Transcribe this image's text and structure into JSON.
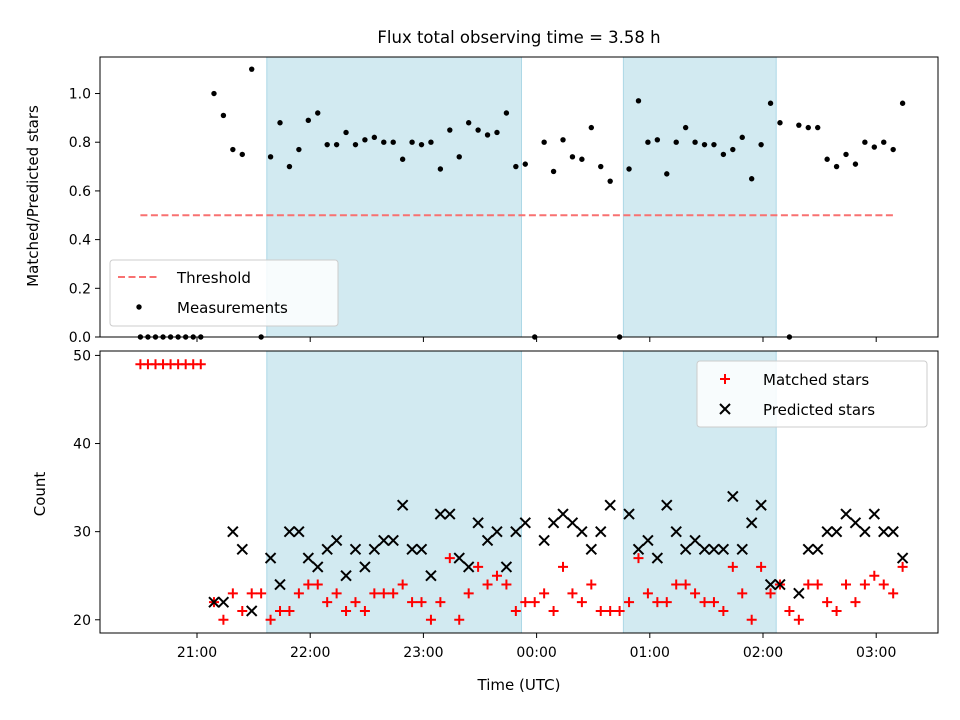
{
  "chart_data": [
    {
      "type": "scatter",
      "title": "Flux total observing time = 3.58 h",
      "ylabel": "Matched/Predicted stars",
      "xlabel": "",
      "ylim": [
        0.0,
        1.15
      ],
      "yticks": [
        "0.0",
        "0.2",
        "0.4",
        "0.6",
        "0.8",
        "1.0"
      ],
      "xticks": [
        "21:00",
        "22:00",
        "23:00",
        "00:00",
        "01:00",
        "02:00",
        "03:00"
      ],
      "shaded_intervals": [
        [
          "21:37",
          "23:52"
        ],
        [
          "00:46",
          "02:07"
        ]
      ],
      "threshold": {
        "name": "Threshold",
        "y": 0.5,
        "x_range": [
          "20:30",
          "03:10"
        ],
        "color": "#f87171"
      },
      "series": [
        {
          "name": "Measurements",
          "points": [
            [
              "20:30",
              0.0
            ],
            [
              "20:34",
              0.0
            ],
            [
              "20:38",
              0.0
            ],
            [
              "20:42",
              0.0
            ],
            [
              "20:46",
              0.0
            ],
            [
              "20:50",
              0.0
            ],
            [
              "20:54",
              0.0
            ],
            [
              "20:58",
              0.0
            ],
            [
              "21:02",
              0.0
            ],
            [
              "21:09",
              1.0
            ],
            [
              "21:14",
              0.91
            ],
            [
              "21:19",
              0.77
            ],
            [
              "21:24",
              0.75
            ],
            [
              "21:29",
              1.1
            ],
            [
              "21:34",
              0.0
            ],
            [
              "21:39",
              0.74
            ],
            [
              "21:44",
              0.88
            ],
            [
              "21:49",
              0.7
            ],
            [
              "21:54",
              0.77
            ],
            [
              "21:59",
              0.89
            ],
            [
              "22:04",
              0.92
            ],
            [
              "22:09",
              0.79
            ],
            [
              "22:14",
              0.79
            ],
            [
              "22:19",
              0.84
            ],
            [
              "22:24",
              0.79
            ],
            [
              "22:29",
              0.81
            ],
            [
              "22:34",
              0.82
            ],
            [
              "22:39",
              0.8
            ],
            [
              "22:44",
              0.8
            ],
            [
              "22:49",
              0.73
            ],
            [
              "22:54",
              0.8
            ],
            [
              "22:59",
              0.79
            ],
            [
              "23:04",
              0.8
            ],
            [
              "23:09",
              0.69
            ],
            [
              "23:14",
              0.85
            ],
            [
              "23:19",
              0.74
            ],
            [
              "23:24",
              0.88
            ],
            [
              "23:29",
              0.85
            ],
            [
              "23:34",
              0.83
            ],
            [
              "23:39",
              0.84
            ],
            [
              "23:44",
              0.92
            ],
            [
              "23:49",
              0.7
            ],
            [
              "23:54",
              0.71
            ],
            [
              "23:59",
              0.0
            ],
            [
              "00:04",
              0.8
            ],
            [
              "00:09",
              0.68
            ],
            [
              "00:14",
              0.81
            ],
            [
              "00:19",
              0.74
            ],
            [
              "00:24",
              0.73
            ],
            [
              "00:29",
              0.86
            ],
            [
              "00:34",
              0.7
            ],
            [
              "00:39",
              0.64
            ],
            [
              "00:44",
              0.0
            ],
            [
              "00:49",
              0.69
            ],
            [
              "00:54",
              0.97
            ],
            [
              "00:59",
              0.8
            ],
            [
              "01:04",
              0.81
            ],
            [
              "01:09",
              0.67
            ],
            [
              "01:14",
              0.8
            ],
            [
              "01:19",
              0.86
            ],
            [
              "01:24",
              0.8
            ],
            [
              "01:29",
              0.79
            ],
            [
              "01:34",
              0.79
            ],
            [
              "01:39",
              0.75
            ],
            [
              "01:44",
              0.77
            ],
            [
              "01:49",
              0.82
            ],
            [
              "01:54",
              0.65
            ],
            [
              "01:59",
              0.79
            ],
            [
              "02:04",
              0.96
            ],
            [
              "02:09",
              0.88
            ],
            [
              "02:14",
              0.0
            ],
            [
              "02:19",
              0.87
            ],
            [
              "02:24",
              0.86
            ],
            [
              "02:29",
              0.86
            ],
            [
              "02:34",
              0.73
            ],
            [
              "02:39",
              0.7
            ],
            [
              "02:44",
              0.75
            ],
            [
              "02:49",
              0.71
            ],
            [
              "02:54",
              0.8
            ],
            [
              "02:59",
              0.78
            ],
            [
              "03:04",
              0.8
            ],
            [
              "03:09",
              0.77
            ],
            [
              "03:14",
              0.96
            ]
          ]
        }
      ],
      "legend": {
        "placement": "lower-left",
        "entries": [
          "Threshold",
          "Measurements"
        ]
      }
    },
    {
      "type": "scatter",
      "title": "",
      "ylabel": "Count",
      "xlabel": "Time (UTC)",
      "ylim": [
        18.5,
        50.5
      ],
      "yticks": [
        "20",
        "30",
        "40",
        "50"
      ],
      "xticks": [
        "21:00",
        "22:00",
        "23:00",
        "00:00",
        "01:00",
        "02:00",
        "03:00"
      ],
      "shaded_intervals": [
        [
          "21:37",
          "23:52"
        ],
        [
          "00:46",
          "02:07"
        ]
      ],
      "series": [
        {
          "name": "Matched stars",
          "color": "#ff0000",
          "marker": "+",
          "points": [
            [
              "20:30",
              49
            ],
            [
              "20:34",
              49
            ],
            [
              "20:38",
              49
            ],
            [
              "20:42",
              49
            ],
            [
              "20:46",
              49
            ],
            [
              "20:50",
              49
            ],
            [
              "20:54",
              49
            ],
            [
              "20:58",
              49
            ],
            [
              "21:02",
              49
            ],
            [
              "21:09",
              22
            ],
            [
              "21:14",
              20
            ],
            [
              "21:19",
              23
            ],
            [
              "21:24",
              21
            ],
            [
              "21:29",
              23
            ],
            [
              "21:34",
              23
            ],
            [
              "21:39",
              20
            ],
            [
              "21:44",
              21
            ],
            [
              "21:49",
              21
            ],
            [
              "21:54",
              23
            ],
            [
              "21:59",
              24
            ],
            [
              "22:04",
              24
            ],
            [
              "22:09",
              22
            ],
            [
              "22:14",
              23
            ],
            [
              "22:19",
              21
            ],
            [
              "22:24",
              22
            ],
            [
              "22:29",
              21
            ],
            [
              "22:34",
              23
            ],
            [
              "22:39",
              23
            ],
            [
              "22:44",
              23
            ],
            [
              "22:49",
              24
            ],
            [
              "22:54",
              22
            ],
            [
              "22:59",
              22
            ],
            [
              "23:04",
              20
            ],
            [
              "23:09",
              22
            ],
            [
              "23:14",
              27
            ],
            [
              "23:19",
              20
            ],
            [
              "23:24",
              23
            ],
            [
              "23:29",
              26
            ],
            [
              "23:34",
              24
            ],
            [
              "23:39",
              25
            ],
            [
              "23:44",
              24
            ],
            [
              "23:49",
              21
            ],
            [
              "23:54",
              22
            ],
            [
              "23:59",
              22
            ],
            [
              "00:04",
              23
            ],
            [
              "00:09",
              21
            ],
            [
              "00:14",
              26
            ],
            [
              "00:19",
              23
            ],
            [
              "00:24",
              22
            ],
            [
              "00:29",
              24
            ],
            [
              "00:34",
              21
            ],
            [
              "00:39",
              21
            ],
            [
              "00:44",
              21
            ],
            [
              "00:49",
              22
            ],
            [
              "00:54",
              27
            ],
            [
              "00:59",
              23
            ],
            [
              "01:04",
              22
            ],
            [
              "01:09",
              22
            ],
            [
              "01:14",
              24
            ],
            [
              "01:19",
              24
            ],
            [
              "01:24",
              23
            ],
            [
              "01:29",
              22
            ],
            [
              "01:34",
              22
            ],
            [
              "01:39",
              21
            ],
            [
              "01:44",
              26
            ],
            [
              "01:49",
              23
            ],
            [
              "01:54",
              20
            ],
            [
              "01:59",
              26
            ],
            [
              "02:04",
              23
            ],
            [
              "02:09",
              24
            ],
            [
              "02:14",
              21
            ],
            [
              "02:19",
              20
            ],
            [
              "02:24",
              24
            ],
            [
              "02:29",
              24
            ],
            [
              "02:34",
              22
            ],
            [
              "02:39",
              21
            ],
            [
              "02:44",
              24
            ],
            [
              "02:49",
              22
            ],
            [
              "02:54",
              24
            ],
            [
              "02:59",
              25
            ],
            [
              "03:04",
              24
            ],
            [
              "03:09",
              23
            ],
            [
              "03:14",
              26
            ]
          ]
        },
        {
          "name": "Predicted stars",
          "color": "#000000",
          "marker": "x",
          "points": [
            [
              "21:09",
              22
            ],
            [
              "21:14",
              22
            ],
            [
              "21:19",
              30
            ],
            [
              "21:24",
              28
            ],
            [
              "21:29",
              21
            ],
            [
              "21:39",
              27
            ],
            [
              "21:44",
              24
            ],
            [
              "21:49",
              30
            ],
            [
              "21:54",
              30
            ],
            [
              "21:59",
              27
            ],
            [
              "22:04",
              26
            ],
            [
              "22:09",
              28
            ],
            [
              "22:14",
              29
            ],
            [
              "22:19",
              25
            ],
            [
              "22:24",
              28
            ],
            [
              "22:29",
              26
            ],
            [
              "22:34",
              28
            ],
            [
              "22:39",
              29
            ],
            [
              "22:44",
              29
            ],
            [
              "22:49",
              33
            ],
            [
              "22:54",
              28
            ],
            [
              "22:59",
              28
            ],
            [
              "23:04",
              25
            ],
            [
              "23:09",
              32
            ],
            [
              "23:14",
              32
            ],
            [
              "23:19",
              27
            ],
            [
              "23:24",
              26
            ],
            [
              "23:29",
              31
            ],
            [
              "23:34",
              29
            ],
            [
              "23:39",
              30
            ],
            [
              "23:44",
              26
            ],
            [
              "23:49",
              30
            ],
            [
              "23:54",
              31
            ],
            [
              "00:04",
              29
            ],
            [
              "00:09",
              31
            ],
            [
              "00:14",
              32
            ],
            [
              "00:19",
              31
            ],
            [
              "00:24",
              30
            ],
            [
              "00:29",
              28
            ],
            [
              "00:34",
              30
            ],
            [
              "00:39",
              33
            ],
            [
              "00:49",
              32
            ],
            [
              "00:54",
              28
            ],
            [
              "00:59",
              29
            ],
            [
              "01:04",
              27
            ],
            [
              "01:09",
              33
            ],
            [
              "01:14",
              30
            ],
            [
              "01:19",
              28
            ],
            [
              "01:24",
              29
            ],
            [
              "01:29",
              28
            ],
            [
              "01:34",
              28
            ],
            [
              "01:39",
              28
            ],
            [
              "01:44",
              34
            ],
            [
              "01:49",
              28
            ],
            [
              "01:54",
              31
            ],
            [
              "01:59",
              33
            ],
            [
              "02:04",
              24
            ],
            [
              "02:09",
              24
            ],
            [
              "02:19",
              23
            ],
            [
              "02:24",
              28
            ],
            [
              "02:29",
              28
            ],
            [
              "02:34",
              30
            ],
            [
              "02:39",
              30
            ],
            [
              "02:44",
              32
            ],
            [
              "02:49",
              31
            ],
            [
              "02:54",
              30
            ],
            [
              "02:59",
              32
            ],
            [
              "03:04",
              30
            ],
            [
              "03:09",
              30
            ],
            [
              "03:14",
              27
            ]
          ]
        }
      ],
      "legend": {
        "placement": "top-right",
        "entries": [
          "Matched stars",
          "Predicted stars"
        ]
      }
    }
  ],
  "colors": {
    "shade": "#add8e6",
    "threshold": "#f87171",
    "matched": "#ff0000",
    "predicted": "#000000",
    "measurement": "#000000"
  }
}
